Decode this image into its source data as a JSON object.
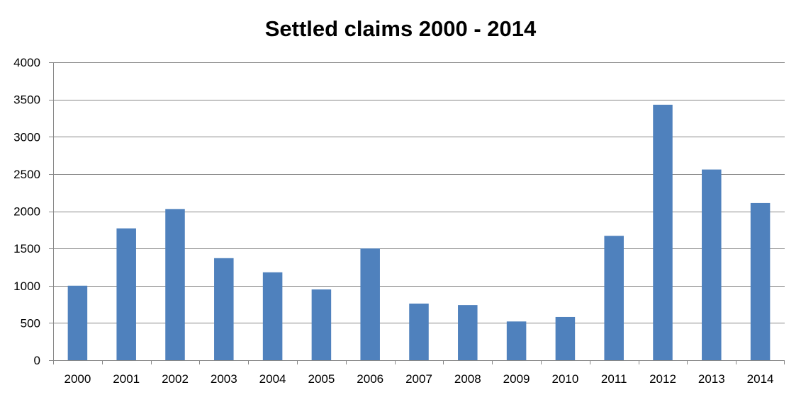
{
  "chart_data": {
    "type": "bar",
    "title": "Settled claims 2000 - 2014",
    "xlabel": "",
    "ylabel": "",
    "categories": [
      "2000",
      "2001",
      "2002",
      "2003",
      "2004",
      "2005",
      "2006",
      "2007",
      "2008",
      "2009",
      "2010",
      "2011",
      "2012",
      "2013",
      "2014"
    ],
    "values": [
      1000,
      1770,
      2030,
      1370,
      1180,
      950,
      1500,
      760,
      740,
      520,
      580,
      1670,
      3430,
      2560,
      2110
    ],
    "ylim": [
      0,
      4000
    ],
    "yticks": [
      "0",
      "500",
      "1000",
      "1500",
      "2000",
      "2500",
      "3000",
      "3500",
      "4000"
    ],
    "grid": true,
    "legend": "none",
    "bar_color": "#4F81BD",
    "grid_color": "#878787",
    "axis_color": "#878787"
  }
}
